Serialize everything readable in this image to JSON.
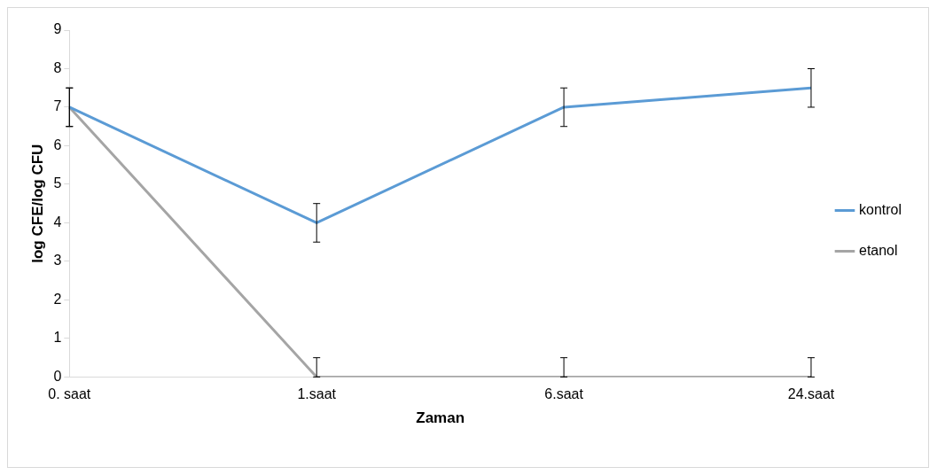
{
  "chart_data": {
    "type": "line",
    "xlabel": "Zaman",
    "ylabel": "log CFE/log CFU",
    "categories": [
      "0. saat",
      "1.saat",
      "6.saat",
      "24.saat"
    ],
    "series": [
      {
        "name": "kontrol",
        "color": "#5b9bd5",
        "values": [
          7,
          4,
          7,
          7.5
        ],
        "errors": [
          0.5,
          0.5,
          0.5,
          0.5
        ]
      },
      {
        "name": "etanol",
        "color": "#a5a5a5",
        "values": [
          7,
          0,
          0,
          0
        ],
        "errors": [
          0.5,
          [
            0,
            0.5
          ],
          [
            0,
            0.5
          ],
          [
            0,
            0.5
          ]
        ]
      }
    ],
    "ylim": [
      0,
      9
    ],
    "yticks": [
      0,
      1,
      2,
      3,
      4,
      5,
      6,
      7,
      8,
      9
    ],
    "grid": false,
    "legend": "right",
    "marker": "none"
  }
}
